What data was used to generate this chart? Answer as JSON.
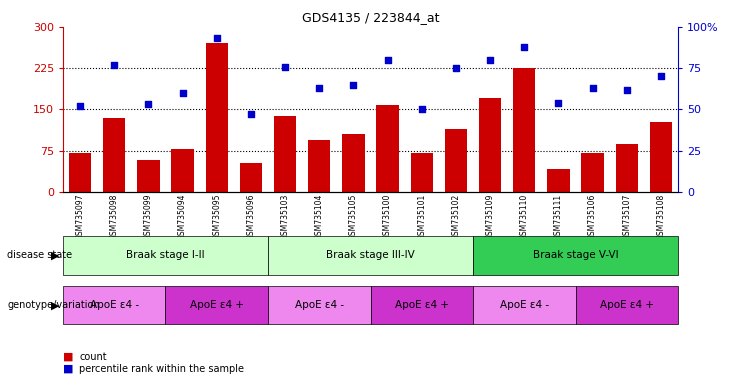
{
  "title": "GDS4135 / 223844_at",
  "samples": [
    "GSM735097",
    "GSM735098",
    "GSM735099",
    "GSM735094",
    "GSM735095",
    "GSM735096",
    "GSM735103",
    "GSM735104",
    "GSM735105",
    "GSM735100",
    "GSM735101",
    "GSM735102",
    "GSM735109",
    "GSM735110",
    "GSM735111",
    "GSM735106",
    "GSM735107",
    "GSM735108"
  ],
  "counts": [
    70,
    135,
    58,
    78,
    270,
    52,
    138,
    95,
    105,
    158,
    70,
    115,
    170,
    225,
    42,
    70,
    88,
    128
  ],
  "percentiles": [
    52,
    77,
    53,
    60,
    93,
    47,
    76,
    63,
    65,
    80,
    50,
    75,
    80,
    88,
    54,
    63,
    62,
    70
  ],
  "ylim_left": [
    0,
    300
  ],
  "ylim_right": [
    0,
    100
  ],
  "yticks_left": [
    0,
    75,
    150,
    225,
    300
  ],
  "yticks_right": [
    0,
    25,
    50,
    75,
    100
  ],
  "ytick_labels_right": [
    "0",
    "25",
    "50",
    "75",
    "100%"
  ],
  "bar_color": "#cc0000",
  "scatter_color": "#0000cc",
  "disease_state_groups": [
    {
      "label": "Braak stage I-II",
      "start": 0,
      "end": 6,
      "color": "#ccffcc"
    },
    {
      "label": "Braak stage III-IV",
      "start": 6,
      "end": 12,
      "color": "#ccffcc"
    },
    {
      "label": "Braak stage V-VI",
      "start": 12,
      "end": 18,
      "color": "#33cc55"
    }
  ],
  "genotype_groups": [
    {
      "label": "ApoE ε4 -",
      "start": 0,
      "end": 3,
      "color": "#ee88ee"
    },
    {
      "label": "ApoE ε4 +",
      "start": 3,
      "end": 6,
      "color": "#cc33cc"
    },
    {
      "label": "ApoE ε4 -",
      "start": 6,
      "end": 9,
      "color": "#ee88ee"
    },
    {
      "label": "ApoE ε4 +",
      "start": 9,
      "end": 12,
      "color": "#cc33cc"
    },
    {
      "label": "ApoE ε4 -",
      "start": 12,
      "end": 15,
      "color": "#ee88ee"
    },
    {
      "label": "ApoE ε4 +",
      "start": 15,
      "end": 18,
      "color": "#cc33cc"
    }
  ],
  "left_axis_color": "#cc0000",
  "right_axis_color": "#0000cc",
  "background_color": "#ffffff"
}
